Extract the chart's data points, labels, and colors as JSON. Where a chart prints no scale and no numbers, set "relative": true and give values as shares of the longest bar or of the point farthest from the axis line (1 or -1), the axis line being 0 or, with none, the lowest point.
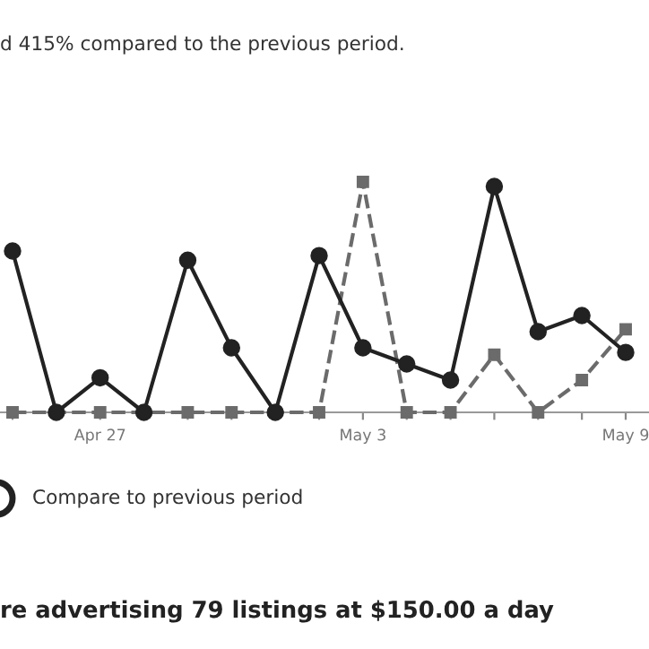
{
  "chart_data": {
    "type": "line",
    "relative": true,
    "categories": [
      null,
      null,
      "Apr 27",
      null,
      null,
      null,
      null,
      null,
      "May 3",
      null,
      null,
      null,
      null,
      null,
      "May 9"
    ],
    "series": [
      {
        "color": "#222222",
        "marker": "circle",
        "line_style": "solid",
        "values": [
          0.7,
          0,
          0.15,
          0,
          0.66,
          0.28,
          0,
          0.68,
          0.28,
          0.21,
          0.14,
          0.98,
          0.35,
          0.42,
          0.26
        ]
      },
      {
        "color": "#6b6b6b",
        "marker": "square",
        "line_style": "dashed",
        "values": [
          0,
          0,
          0,
          0,
          0,
          0,
          0,
          0,
          1,
          0,
          0,
          0.25,
          0,
          0.14,
          0.36
        ]
      }
    ],
    "annotations": [
      "d 415% compared to the previous period.",
      "Compare to previous period",
      "re advertising 79 listings at $150.00 a day"
    ]
  }
}
